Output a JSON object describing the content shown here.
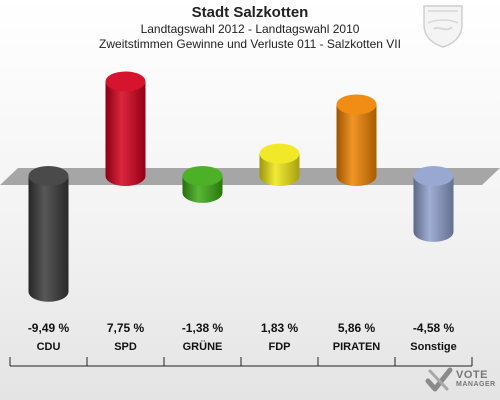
{
  "header": {
    "title": "Stadt Salzkotten",
    "subtitle": "Landtagswahl 2012 - Landtagswahl 2010",
    "subtitle2": "Zweitstimmen Gewinne und Verluste 011 - Salzkotten VII"
  },
  "chart_data": {
    "type": "bar",
    "title": "Stadt Salzkotten",
    "categories": [
      "CDU",
      "SPD",
      "GRÜNE",
      "FDP",
      "PIRATEN",
      "Sonstige"
    ],
    "values": [
      -9.49,
      7.75,
      -1.38,
      1.83,
      5.86,
      -4.58
    ],
    "value_labels": [
      "-9,49 %",
      "7,75 %",
      "-1,38 %",
      "1,83 %",
      "5,86 %",
      "-4,58 %"
    ],
    "colors": [
      "#3a3a3a",
      "#d4001c",
      "#3caa14",
      "#f0e614",
      "#f08200",
      "#8fa0cc"
    ],
    "unit": "%",
    "ylim": [
      -10,
      10
    ],
    "grid": false
  },
  "logo": {
    "line1": "VOTE",
    "line2": "MANAGER"
  }
}
